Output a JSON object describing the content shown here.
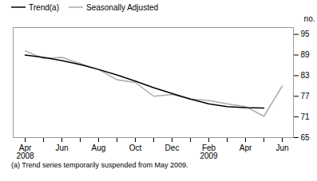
{
  "chart_data": {
    "type": "line",
    "ylabel": "no.",
    "footnote": "(a) Trend series temporarily suspended from May 2009.",
    "categories": [
      "Apr\n2008",
      null,
      "Jun",
      null,
      "Aug",
      null,
      "Oct",
      null,
      "Dec",
      null,
      "Feb\n2009",
      null,
      "Apr",
      null,
      "Jun"
    ],
    "series": [
      {
        "name": "Trend(a)",
        "color": "#000000",
        "values": [
          89.0,
          88.3,
          87.4,
          86.2,
          84.8,
          83.2,
          81.4,
          79.5,
          77.8,
          76.2,
          74.8,
          74.0,
          73.7,
          73.6,
          null
        ]
      },
      {
        "name": "Seasonally Adjusted",
        "color": "#aaaaaa",
        "values": [
          90.2,
          88.0,
          88.3,
          86.5,
          84.8,
          81.8,
          81.0,
          77.0,
          77.5,
          76.2,
          75.8,
          74.8,
          74.0,
          71.2,
          80.0
        ]
      }
    ],
    "ylim": [
      65,
      97
    ],
    "yticks": [
      65,
      71,
      77,
      83,
      89,
      95
    ],
    "legend": "upper left",
    "grid": false
  }
}
